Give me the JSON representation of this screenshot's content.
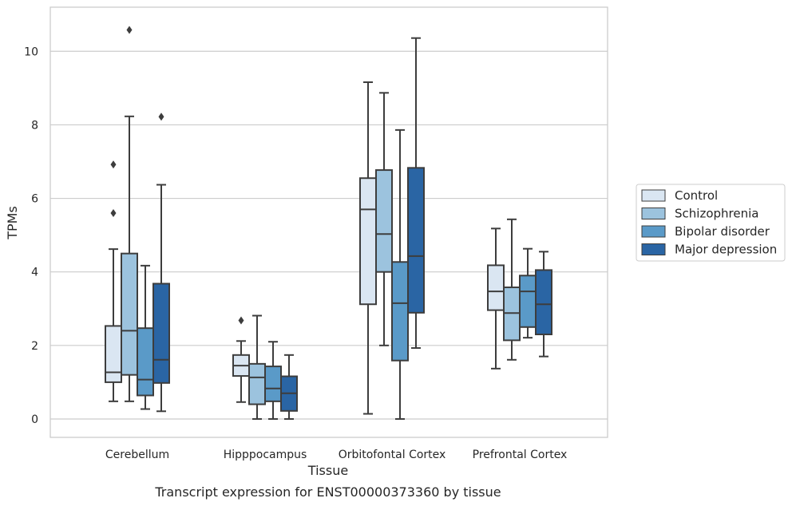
{
  "chart_data": {
    "type": "box",
    "title": "",
    "caption": "Transcript expression for ENST00000373360 by tissue",
    "xlabel": "Tissue",
    "ylabel": "TPMs",
    "ylim": [
      -0.5,
      11.2
    ],
    "yticks": [
      0,
      2,
      4,
      6,
      8,
      10
    ],
    "grid": "horizontal",
    "legend_position": "right",
    "categories": [
      "Cerebellum",
      "Hipppocampus",
      "Orbitofontal Cortex",
      "Prefrontal Cortex"
    ],
    "series": [
      {
        "name": "Control",
        "color": "#dae6f2",
        "boxes": [
          {
            "whislo": 0.48,
            "q1": 1.0,
            "med": 1.27,
            "q3": 2.53,
            "whishi": 4.62,
            "fliers": [
              5.6,
              6.92
            ]
          },
          {
            "whislo": 0.46,
            "q1": 1.17,
            "med": 1.45,
            "q3": 1.74,
            "whishi": 2.12,
            "fliers": [
              2.68
            ]
          },
          {
            "whislo": 0.14,
            "q1": 3.12,
            "med": 5.7,
            "q3": 6.55,
            "whishi": 9.16,
            "fliers": []
          },
          {
            "whislo": 1.37,
            "q1": 2.96,
            "med": 3.47,
            "q3": 4.18,
            "whishi": 5.18,
            "fliers": []
          }
        ]
      },
      {
        "name": "Schizophrenia",
        "color": "#9cc3de",
        "boxes": [
          {
            "whislo": 0.48,
            "q1": 1.2,
            "med": 2.4,
            "q3": 4.5,
            "whishi": 8.23,
            "fliers": [
              10.58
            ]
          },
          {
            "whislo": 0.0,
            "q1": 0.4,
            "med": 1.13,
            "q3": 1.5,
            "whishi": 2.81,
            "fliers": []
          },
          {
            "whislo": 2.0,
            "q1": 4.0,
            "med": 5.03,
            "q3": 6.77,
            "whishi": 8.87,
            "fliers": []
          },
          {
            "whislo": 1.61,
            "q1": 2.14,
            "med": 2.88,
            "q3": 3.58,
            "whishi": 5.43,
            "fliers": []
          }
        ]
      },
      {
        "name": "Bipolar disorder",
        "color": "#5a9ac8",
        "boxes": [
          {
            "whislo": 0.27,
            "q1": 0.64,
            "med": 1.07,
            "q3": 2.47,
            "whishi": 4.17,
            "fliers": []
          },
          {
            "whislo": 0.0,
            "q1": 0.48,
            "med": 0.83,
            "q3": 1.43,
            "whishi": 2.1,
            "fliers": []
          },
          {
            "whislo": 0.0,
            "q1": 1.59,
            "med": 3.15,
            "q3": 4.27,
            "whishi": 7.86,
            "fliers": []
          },
          {
            "whislo": 2.21,
            "q1": 2.5,
            "med": 3.47,
            "q3": 3.9,
            "whishi": 4.63,
            "fliers": []
          }
        ]
      },
      {
        "name": "Major depression",
        "color": "#2a65a4",
        "boxes": [
          {
            "whislo": 0.21,
            "q1": 0.98,
            "med": 1.61,
            "q3": 3.68,
            "whishi": 6.37,
            "fliers": [
              8.22
            ]
          },
          {
            "whislo": 0.0,
            "q1": 0.22,
            "med": 0.7,
            "q3": 1.16,
            "whishi": 1.74,
            "fliers": []
          },
          {
            "whislo": 1.93,
            "q1": 2.89,
            "med": 4.43,
            "q3": 6.83,
            "whishi": 10.36,
            "fliers": []
          },
          {
            "whislo": 1.7,
            "q1": 2.3,
            "med": 3.12,
            "q3": 4.05,
            "whishi": 4.55,
            "fliers": []
          }
        ]
      }
    ]
  }
}
